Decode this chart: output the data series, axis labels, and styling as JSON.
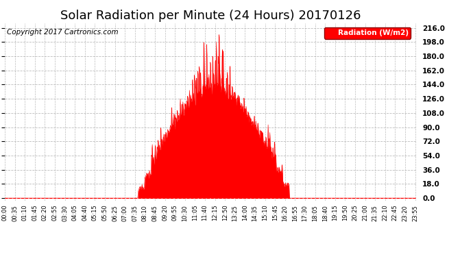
{
  "title": "Solar Radiation per Minute (24 Hours) 20170126",
  "copyright_text": "Copyright 2017 Cartronics.com",
  "legend_label": "Radiation (W/m2)",
  "yticks": [
    0.0,
    18.0,
    36.0,
    54.0,
    72.0,
    90.0,
    108.0,
    126.0,
    144.0,
    162.0,
    180.0,
    198.0,
    216.0
  ],
  "ymax": 222,
  "ymin": -3,
  "fill_color": "red",
  "bg_color": "white",
  "grid_color": "#aaaaaa",
  "title_fontsize": 13,
  "copyright_fontsize": 7.5,
  "legend_bg": "red",
  "legend_fg": "white",
  "x_tick_labels": [
    "00:00",
    "00:35",
    "01:10",
    "01:45",
    "02:20",
    "02:55",
    "03:30",
    "04:05",
    "04:40",
    "05:15",
    "05:50",
    "06:25",
    "07:00",
    "07:35",
    "08:10",
    "08:45",
    "09:20",
    "09:55",
    "10:30",
    "11:05",
    "11:40",
    "12:15",
    "12:50",
    "13:25",
    "14:00",
    "14:35",
    "15:10",
    "15:45",
    "16:20",
    "16:55",
    "17:30",
    "18:05",
    "18:40",
    "19:15",
    "19:50",
    "20:25",
    "21:00",
    "21:35",
    "22:10",
    "22:45",
    "23:20",
    "23:55"
  ],
  "sunrise_min": 455,
  "sunset_min": 1005,
  "n_minutes": 1440
}
